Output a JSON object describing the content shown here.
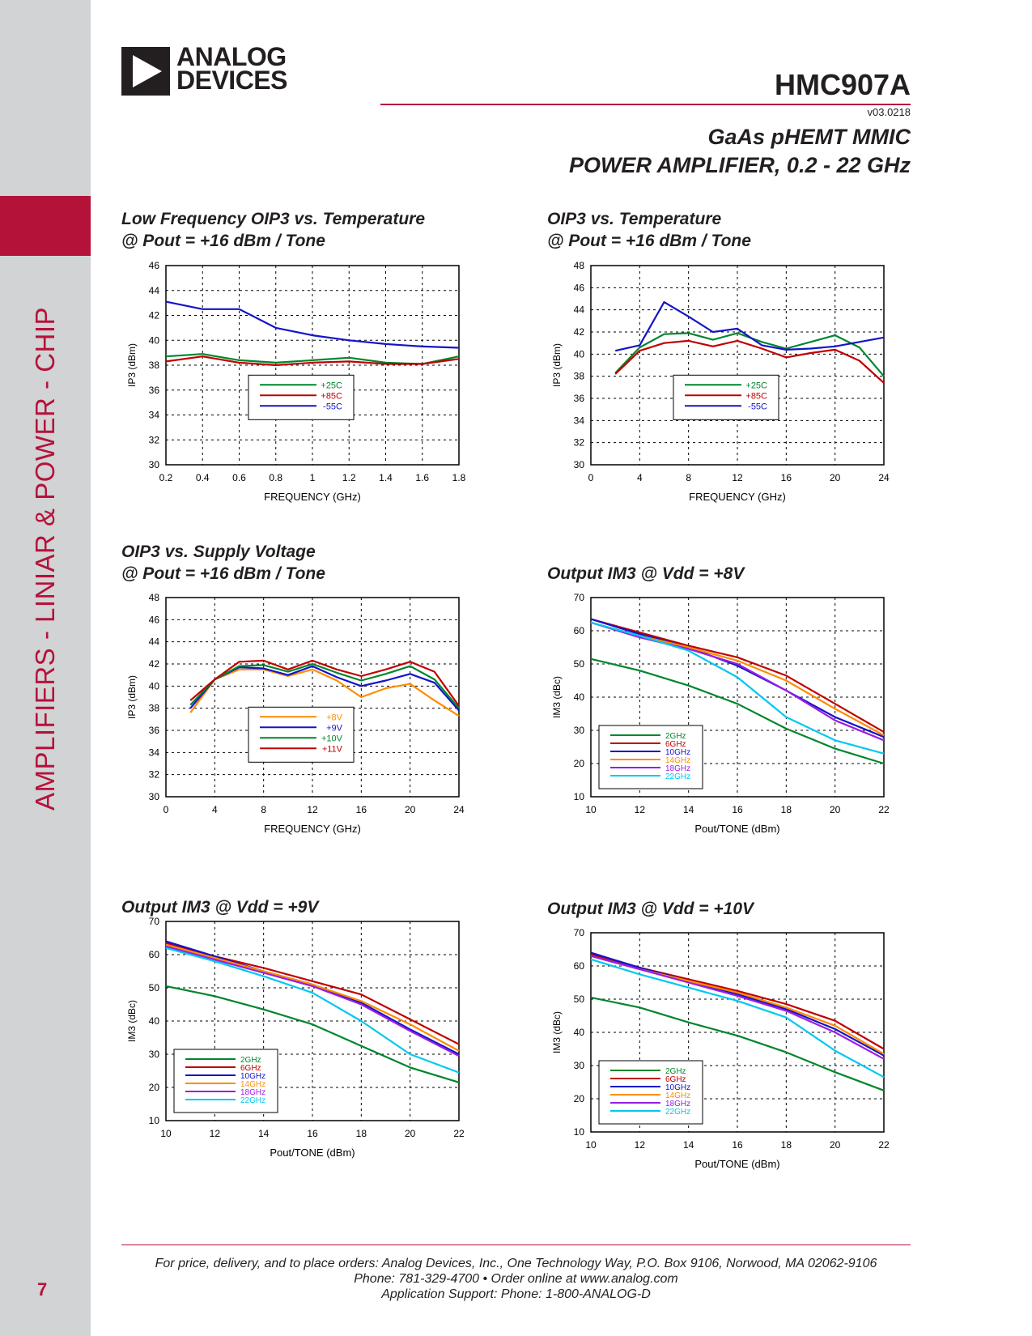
{
  "sidebar": {
    "section_title": "AMPLIFIERS - LINIAR & POWER - CHIP",
    "page_number": "7"
  },
  "header": {
    "logo_line1": "ANALOG",
    "logo_line2": "DEVICES",
    "part_number": "HMC907A",
    "version": "v03.0218",
    "subtitle_line1": "GaAs pHEMT MMIC",
    "subtitle_line2": "POWER AMPLIFIER, 0.2 - 22 GHz"
  },
  "chart_titles": {
    "c1_line1": "Low Frequency OIP3 vs. Temperature",
    "c1_line2": "@ Pout = +16 dBm / Tone",
    "c2_line1": "OIP3 vs. Temperature",
    "c2_line2": "@ Pout = +16 dBm / Tone",
    "c3_line1": "OIP3 vs. Supply Voltage",
    "c3_line2": "@ Pout = +16 dBm / Tone",
    "c4_line1": "Output IM3 @ Vdd = +8V",
    "c5_line1": "Output IM3 @ Vdd = +9V",
    "c6_line1": "Output IM3 @ Vdd = +10V"
  },
  "chart_data": [
    {
      "type": "line",
      "title": "Low Frequency OIP3 vs. Temperature @ Pout = +16 dBm / Tone",
      "xlabel": "FREQUENCY (GHz)",
      "ylabel": "IP3 (dBm)",
      "xlim": [
        0.2,
        1.8
      ],
      "ylim": [
        30,
        46
      ],
      "xticks": [
        0.2,
        0.4,
        0.6,
        0.8,
        1,
        1.2,
        1.4,
        1.6,
        1.8
      ],
      "xtick_labels": [
        "0.2",
        "0.4",
        "0.6",
        "0.8",
        "1",
        "1.2",
        "1.4",
        "1.6",
        "1.8"
      ],
      "yticks": [
        30,
        32,
        34,
        36,
        38,
        40,
        42,
        44,
        46
      ],
      "grid": true,
      "legend": "center",
      "x": [
        0.2,
        0.4,
        0.6,
        0.8,
        1.0,
        1.2,
        1.4,
        1.6,
        1.8
      ],
      "series": [
        {
          "name": "+25C",
          "color": "#00862d",
          "values": [
            38.7,
            38.9,
            38.4,
            38.2,
            38.4,
            38.6,
            38.2,
            38.1,
            38.7
          ]
        },
        {
          "name": "+85C",
          "color": "#c00000",
          "values": [
            38.3,
            38.7,
            38.2,
            38.0,
            38.2,
            38.3,
            38.1,
            38.1,
            38.5
          ]
        },
        {
          "name": "-55C",
          "color": "#1414c8",
          "values": [
            43.1,
            42.5,
            42.5,
            41.0,
            40.4,
            40.0,
            39.7,
            39.5,
            39.4
          ]
        }
      ]
    },
    {
      "type": "line",
      "title": "OIP3 vs. Temperature @ Pout = +16 dBm / Tone",
      "xlabel": "FREQUENCY (GHz)",
      "ylabel": "IP3 (dBm)",
      "xlim": [
        0,
        24
      ],
      "ylim": [
        30,
        48
      ],
      "xticks": [
        0,
        4,
        8,
        12,
        16,
        20,
        24
      ],
      "xtick_labels": [
        "0",
        "4",
        "8",
        "12",
        "16",
        "20",
        "24"
      ],
      "yticks": [
        30,
        32,
        34,
        36,
        38,
        40,
        42,
        44,
        46,
        48
      ],
      "grid": true,
      "legend": "center",
      "x": [
        2,
        4,
        6,
        8,
        10,
        12,
        14,
        16,
        18,
        20,
        22,
        24
      ],
      "series": [
        {
          "name": "+25C",
          "color": "#00862d",
          "values": [
            38.3,
            40.6,
            41.8,
            41.9,
            41.3,
            41.9,
            41.1,
            40.5,
            41.1,
            41.7,
            40.6,
            38.0
          ]
        },
        {
          "name": "+85C",
          "color": "#c00000",
          "values": [
            38.2,
            40.3,
            41.0,
            41.2,
            40.7,
            41.2,
            40.5,
            39.7,
            40.1,
            40.4,
            39.4,
            37.4
          ]
        },
        {
          "name": "-55C",
          "color": "#1414c8",
          "values": [
            40.3,
            40.8,
            44.7,
            43.4,
            42.0,
            42.3,
            40.8,
            40.4,
            40.5,
            40.7,
            41.1,
            41.5
          ]
        }
      ]
    },
    {
      "type": "line",
      "title": "OIP3 vs. Supply Voltage @ Pout = +16 dBm / Tone",
      "xlabel": "FREQUENCY (GHz)",
      "ylabel": "IP3 (dBm)",
      "xlim": [
        0,
        24
      ],
      "ylim": [
        30,
        48
      ],
      "xticks": [
        0,
        4,
        8,
        12,
        16,
        20,
        24
      ],
      "xtick_labels": [
        "0",
        "4",
        "8",
        "12",
        "16",
        "20",
        "24"
      ],
      "yticks": [
        30,
        32,
        34,
        36,
        38,
        40,
        42,
        44,
        46,
        48
      ],
      "grid": true,
      "legend": "center",
      "x": [
        2,
        4,
        6,
        8,
        10,
        12,
        14,
        16,
        18,
        20,
        22,
        24
      ],
      "series": [
        {
          "name": "+8V",
          "color": "#ff8c00",
          "values": [
            37.6,
            40.6,
            41.5,
            41.5,
            40.9,
            41.5,
            40.5,
            39.0,
            39.8,
            40.2,
            38.7,
            37.3
          ]
        },
        {
          "name": "+9V",
          "color": "#1414c8",
          "values": [
            38.0,
            40.6,
            41.7,
            41.6,
            41.0,
            41.8,
            40.8,
            40.0,
            40.5,
            41.1,
            40.3,
            37.8
          ]
        },
        {
          "name": "+10V",
          "color": "#00862d",
          "values": [
            38.3,
            40.6,
            41.8,
            41.9,
            41.3,
            42.0,
            41.2,
            40.5,
            41.1,
            41.8,
            40.6,
            38.0
          ]
        },
        {
          "name": "+11V",
          "color": "#c00000",
          "values": [
            38.7,
            40.6,
            42.2,
            42.3,
            41.5,
            42.3,
            41.5,
            40.9,
            41.5,
            42.2,
            41.3,
            38.2
          ]
        }
      ]
    },
    {
      "type": "line",
      "title": "Output IM3 @ Vdd = +8V",
      "xlabel": "Pout/TONE (dBm)",
      "ylabel": "IM3 (dBc)",
      "xlim": [
        10,
        22
      ],
      "ylim": [
        10,
        70
      ],
      "xticks": [
        10,
        12,
        14,
        16,
        18,
        20,
        22
      ],
      "xtick_labels": [
        "10",
        "12",
        "14",
        "16",
        "18",
        "20",
        "22"
      ],
      "yticks": [
        10,
        20,
        30,
        40,
        50,
        60,
        70
      ],
      "grid": true,
      "legend": "bottom-left",
      "x": [
        10,
        12,
        14,
        16,
        18,
        20,
        22
      ],
      "series": [
        {
          "name": "2GHz",
          "color": "#00862d",
          "values": [
            51.5,
            48.0,
            43.5,
            38.0,
            30.5,
            24.5,
            20.0
          ]
        },
        {
          "name": "6GHz",
          "color": "#c00000",
          "values": [
            63.5,
            59.5,
            55.5,
            52.0,
            46.5,
            38.0,
            29.5
          ]
        },
        {
          "name": "10GHz",
          "color": "#1414c8",
          "values": [
            63.5,
            59.0,
            55.0,
            49.5,
            42.0,
            34.0,
            28.0
          ]
        },
        {
          "name": "14GHz",
          "color": "#ff8c00",
          "values": [
            62.5,
            58.5,
            55.0,
            51.0,
            45.0,
            36.5,
            28.5
          ]
        },
        {
          "name": "18GHz",
          "color": "#9a1ee6",
          "values": [
            62.5,
            58.0,
            54.5,
            50.0,
            42.0,
            33.0,
            27.0
          ]
        },
        {
          "name": "22GHz",
          "color": "#00c8f0",
          "values": [
            62.5,
            58.5,
            54.0,
            46.0,
            34.0,
            27.0,
            23.0
          ]
        }
      ]
    },
    {
      "type": "line",
      "title": "Output IM3 @ Vdd = +9V",
      "xlabel": "Pout/TONE (dBm)",
      "ylabel": "IM3 (dBc)",
      "xlim": [
        10,
        22
      ],
      "ylim": [
        10,
        70
      ],
      "xticks": [
        10,
        12,
        14,
        16,
        18,
        20,
        22
      ],
      "xtick_labels": [
        "10",
        "12",
        "14",
        "16",
        "18",
        "20",
        "22"
      ],
      "yticks": [
        10,
        20,
        30,
        40,
        50,
        60,
        70
      ],
      "grid": true,
      "legend": "bottom-left",
      "x": [
        10,
        12,
        14,
        16,
        18,
        20,
        22
      ],
      "series": [
        {
          "name": "2GHz",
          "color": "#00862d",
          "values": [
            50.5,
            47.5,
            43.5,
            39.0,
            32.5,
            26.0,
            21.5
          ]
        },
        {
          "name": "6GHz",
          "color": "#c00000",
          "values": [
            63.5,
            59.5,
            56.0,
            52.0,
            48.0,
            40.5,
            33.0
          ]
        },
        {
          "name": "10GHz",
          "color": "#1414c8",
          "values": [
            64.0,
            59.5,
            55.0,
            51.0,
            45.5,
            37.5,
            30.0
          ]
        },
        {
          "name": "14GHz",
          "color": "#ff8c00",
          "values": [
            63.0,
            59.0,
            55.0,
            51.0,
            46.0,
            39.0,
            31.0
          ]
        },
        {
          "name": "18GHz",
          "color": "#9a1ee6",
          "values": [
            62.5,
            58.5,
            54.5,
            50.5,
            45.0,
            37.0,
            29.5
          ]
        },
        {
          "name": "22GHz",
          "color": "#00c8f0",
          "values": [
            62.0,
            58.0,
            53.5,
            48.5,
            40.0,
            30.0,
            24.5
          ]
        }
      ]
    },
    {
      "type": "line",
      "title": "Output IM3 @ Vdd = +10V",
      "xlabel": "Pout/TONE (dBm)",
      "ylabel": "IM3 (dBc)",
      "xlim": [
        10,
        22
      ],
      "ylim": [
        10,
        70
      ],
      "xticks": [
        10,
        12,
        14,
        16,
        18,
        20,
        22
      ],
      "xtick_labels": [
        "10",
        "12",
        "14",
        "16",
        "18",
        "20",
        "22"
      ],
      "yticks": [
        10,
        20,
        30,
        40,
        50,
        60,
        70
      ],
      "grid": true,
      "legend": "bottom-left",
      "x": [
        10,
        12,
        14,
        16,
        18,
        20,
        22
      ],
      "series": [
        {
          "name": "2GHz",
          "color": "#00862d",
          "values": [
            50.5,
            47.5,
            43.0,
            39.0,
            34.0,
            28.0,
            22.5
          ]
        },
        {
          "name": "6GHz",
          "color": "#c00000",
          "values": [
            63.5,
            59.5,
            56.0,
            52.5,
            48.5,
            43.5,
            35.0
          ]
        },
        {
          "name": "10GHz",
          "color": "#1414c8",
          "values": [
            64.0,
            59.5,
            55.5,
            51.5,
            47.0,
            41.0,
            33.0
          ]
        },
        {
          "name": "14GHz",
          "color": "#ff8c00",
          "values": [
            63.0,
            59.0,
            55.5,
            52.0,
            47.5,
            42.0,
            33.5
          ]
        },
        {
          "name": "18GHz",
          "color": "#9a1ee6",
          "values": [
            63.0,
            59.0,
            55.0,
            51.0,
            46.5,
            40.0,
            32.0
          ]
        },
        {
          "name": "22GHz",
          "color": "#00c8f0",
          "values": [
            62.0,
            57.5,
            53.5,
            49.5,
            44.5,
            34.5,
            26.5
          ]
        }
      ]
    }
  ],
  "footer": {
    "line1": "For price, delivery, and to place orders: Analog Devices, Inc., One Technology Way, P.O. Box 9106, Norwood, MA 02062-9106",
    "line2": "Phone: 781-329-4700 • Order online at www.analog.com",
    "line3": "Application Support: Phone: 1-800-ANALOG-D"
  }
}
